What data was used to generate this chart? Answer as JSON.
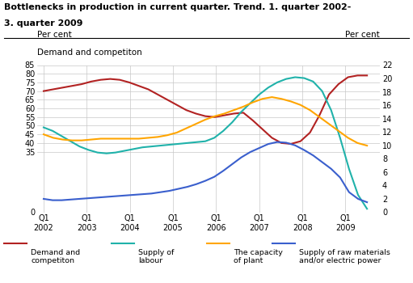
{
  "title_line1": "Bottlenecks in production in current quarter. Trend. 1. quarter 2002-",
  "title_line2": "3. quarter 2009",
  "left_label_top": "Per cent",
  "left_label_bottom": "Demand and competiton",
  "right_label": "Per cent",
  "ylim_left": [
    0,
    85
  ],
  "ylim_right": [
    0,
    22
  ],
  "yticks_left": [
    0,
    35,
    40,
    45,
    50,
    55,
    60,
    65,
    70,
    75,
    80,
    85
  ],
  "yticks_right": [
    0,
    2,
    4,
    6,
    8,
    10,
    12,
    14,
    16,
    18,
    20,
    22
  ],
  "xtick_labels": [
    "Q1\n2002",
    "Q1\n2003",
    "Q1\n2004",
    "Q1\n2005",
    "Q1\n2006",
    "Q1\n2007",
    "Q1\n2008",
    "Q1\n2009"
  ],
  "n_quarters": 31,
  "series": {
    "demand": {
      "color": "#b22222",
      "label": "Demand and\ncompetiton",
      "values": [
        70,
        71,
        72,
        73,
        74,
        75.5,
        76.5,
        77,
        76.5,
        75,
        73,
        71,
        68,
        65,
        62,
        59,
        57,
        55.5,
        55,
        56,
        57,
        57.5,
        53,
        48,
        43,
        40,
        39.5,
        41,
        46,
        56,
        68,
        74,
        78,
        79,
        79
      ]
    },
    "labour": {
      "color": "#20b2aa",
      "label": "Supply of\nlabour",
      "values": [
        49,
        47,
        44,
        41,
        38,
        36,
        34.5,
        34,
        34.5,
        35.5,
        36.5,
        37.5,
        38,
        38.5,
        39,
        39.5,
        40,
        40.5,
        41,
        43,
        47,
        52,
        58,
        63,
        68,
        72,
        75,
        77,
        78,
        77.5,
        75.5,
        70,
        59,
        43,
        25,
        10,
        2
      ]
    },
    "capacity": {
      "color": "#ffa500",
      "label": "The capacity\nof plant",
      "values": [
        45,
        43,
        42,
        41.5,
        41.5,
        42,
        42.5,
        42.5,
        42.5,
        42.5,
        42.5,
        43,
        43.5,
        44.5,
        46,
        48.5,
        51,
        53.5,
        55.5,
        57,
        59,
        61,
        63.5,
        65.5,
        66.5,
        65.5,
        64,
        62,
        59,
        55,
        51,
        47,
        43,
        40,
        38.5
      ]
    },
    "raw_materials": {
      "color": "#3a5fcd",
      "label": "Supply of raw materials\nand/or electric power",
      "axis": "right",
      "values": [
        2.0,
        1.8,
        1.8,
        1.9,
        2.0,
        2.1,
        2.2,
        2.3,
        2.4,
        2.5,
        2.6,
        2.7,
        2.8,
        3.0,
        3.2,
        3.5,
        3.8,
        4.2,
        4.7,
        5.3,
        6.2,
        7.2,
        8.2,
        9.0,
        9.6,
        10.2,
        10.5,
        10.4,
        10.0,
        9.3,
        8.5,
        7.5,
        6.5,
        5.2,
        3.0,
        2.0,
        1.5
      ]
    }
  },
  "background_color": "#ffffff",
  "grid_color": "#c8c8c8"
}
